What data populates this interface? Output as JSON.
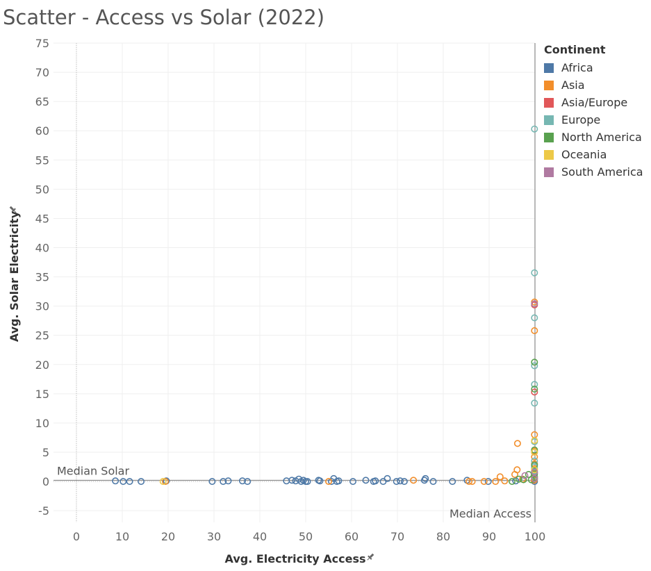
{
  "title": "Scatter - Access vs Solar (2022)",
  "legend": {
    "title": "Continent",
    "items": [
      {
        "label": "Africa",
        "color": "#4e79a7"
      },
      {
        "label": "Asia",
        "color": "#f28e2b"
      },
      {
        "label": "Asia/Europe",
        "color": "#e15759"
      },
      {
        "label": "Europe",
        "color": "#76b7b2"
      },
      {
        "label": "North America",
        "color": "#59a14f"
      },
      {
        "label": "Oceania",
        "color": "#edc948"
      },
      {
        "label": "South America",
        "color": "#b07aa1"
      }
    ]
  },
  "chart_data": {
    "type": "scatter",
    "title": "Scatter - Access vs Solar (2022)",
    "xlabel": "Avg. Electricity Access",
    "ylabel": "Avg. Solar Electricity",
    "xlim": [
      -5,
      100
    ],
    "ylim": [
      -7,
      75
    ],
    "x_ticks": [
      0,
      10,
      20,
      30,
      40,
      50,
      60,
      70,
      80,
      90,
      100
    ],
    "y_ticks": [
      -5,
      0,
      5,
      10,
      15,
      20,
      25,
      30,
      35,
      40,
      45,
      50,
      55,
      60,
      65,
      70,
      75
    ],
    "reference_lines": [
      {
        "axis": "x",
        "label": "Median Access",
        "value": 100
      },
      {
        "axis": "y",
        "label": "Median Solar",
        "value": 0.2
      }
    ],
    "marker": "hollow-circle",
    "series": [
      {
        "name": "Africa",
        "color": "#4e79a7",
        "points": [
          [
            8.5,
            0.1
          ],
          [
            10.2,
            0
          ],
          [
            11.6,
            0
          ],
          [
            14.1,
            0
          ],
          [
            19.6,
            0.1
          ],
          [
            29.6,
            0
          ],
          [
            32.0,
            0
          ],
          [
            33.1,
            0.1
          ],
          [
            36.2,
            0.1
          ],
          [
            37.3,
            0
          ],
          [
            45.8,
            0.1
          ],
          [
            47.0,
            0.2
          ],
          [
            47.8,
            0.1
          ],
          [
            48.5,
            0.4
          ],
          [
            49.0,
            0
          ],
          [
            49.5,
            0.2
          ],
          [
            50.0,
            0
          ],
          [
            50.4,
            0
          ],
          [
            52.8,
            0.2
          ],
          [
            53.1,
            0.1
          ],
          [
            55.6,
            0
          ],
          [
            56.1,
            0.5
          ],
          [
            56.8,
            0
          ],
          [
            57.2,
            0.1
          ],
          [
            60.3,
            0
          ],
          [
            63.1,
            0.2
          ],
          [
            64.8,
            0
          ],
          [
            65.2,
            0.1
          ],
          [
            66.9,
            0
          ],
          [
            67.8,
            0.5
          ],
          [
            69.8,
            0
          ],
          [
            70.6,
            0.1
          ],
          [
            71.5,
            0
          ],
          [
            75.9,
            0.2
          ],
          [
            76.1,
            0.5
          ],
          [
            77.8,
            0
          ],
          [
            82.0,
            0
          ],
          [
            85.2,
            0.2
          ],
          [
            89.8,
            0
          ],
          [
            95.8,
            0.1
          ],
          [
            99.9,
            0
          ],
          [
            99.9,
            0.3
          ]
        ]
      },
      {
        "name": "Asia",
        "color": "#f28e2b",
        "points": [
          [
            19.4,
            0
          ],
          [
            55.0,
            0
          ],
          [
            73.5,
            0.2
          ],
          [
            85.6,
            0
          ],
          [
            86.3,
            0
          ],
          [
            88.9,
            0
          ],
          [
            91.4,
            0
          ],
          [
            92.4,
            0.8
          ],
          [
            93.4,
            0.1
          ],
          [
            95.6,
            1.2
          ],
          [
            96.2,
            6.5
          ],
          [
            96.1,
            2.0
          ],
          [
            97.3,
            0.4
          ],
          [
            99.8,
            0.2
          ],
          [
            99.9,
            0.8
          ],
          [
            99.9,
            1.5
          ],
          [
            99.9,
            2.2
          ],
          [
            99.9,
            3.0
          ],
          [
            99.9,
            4.2
          ],
          [
            99.9,
            5.2
          ],
          [
            99.9,
            8.0
          ],
          [
            99.9,
            25.8
          ],
          [
            99.9,
            30.7
          ]
        ]
      },
      {
        "name": "Asia/Europe",
        "color": "#e15759",
        "points": [
          [
            99.9,
            15.3
          ],
          [
            99.9,
            30.2
          ]
        ]
      },
      {
        "name": "Europe",
        "color": "#76b7b2",
        "points": [
          [
            99.9,
            0.9
          ],
          [
            99.9,
            1.8
          ],
          [
            99.9,
            2.5
          ],
          [
            99.9,
            3.5
          ],
          [
            99.9,
            5.0
          ],
          [
            99.9,
            6.8
          ],
          [
            99.9,
            13.4
          ],
          [
            99.9,
            16.6
          ],
          [
            99.9,
            19.8
          ],
          [
            99.9,
            28.0
          ],
          [
            99.9,
            35.7
          ],
          [
            99.9,
            60.3
          ]
        ]
      },
      {
        "name": "North America",
        "color": "#59a14f",
        "points": [
          [
            95.0,
            0
          ],
          [
            96.5,
            0.4
          ],
          [
            97.5,
            0.3
          ],
          [
            98.6,
            1.2
          ],
          [
            99.2,
            0.3
          ],
          [
            99.9,
            0.6
          ],
          [
            99.9,
            1.3
          ],
          [
            99.9,
            2.8
          ],
          [
            99.9,
            5.4
          ],
          [
            99.9,
            15.8
          ],
          [
            99.9,
            20.4
          ]
        ]
      },
      {
        "name": "Oceania",
        "color": "#edc948",
        "points": [
          [
            18.9,
            0
          ],
          [
            99.9,
            0.5
          ],
          [
            99.9,
            2.0
          ],
          [
            99.9,
            5.0
          ],
          [
            99.9,
            7.0
          ]
        ]
      },
      {
        "name": "South America",
        "color": "#b07aa1",
        "points": [
          [
            97.8,
            1.0
          ],
          [
            99.9,
            0.5
          ],
          [
            99.9,
            1.6
          ],
          [
            99.9,
            30.4
          ]
        ]
      }
    ]
  }
}
